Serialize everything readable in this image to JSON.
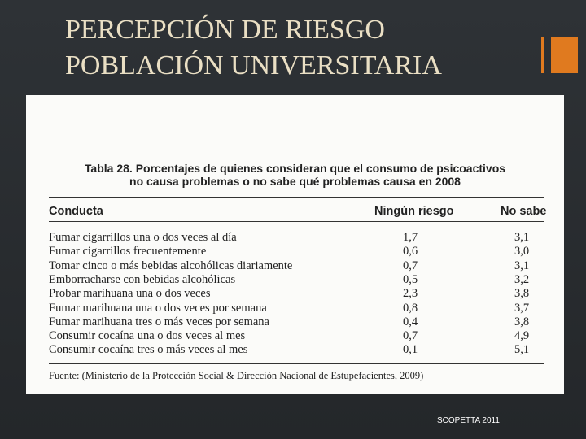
{
  "header": {
    "title": [
      "PERCEPCIÓN DE RIESGO",
      "POBLACIÓN UNIVERSITARIA"
    ]
  },
  "table": {
    "caption": [
      "Tabla 28. Porcentajes de quienes consideran que el consumo de psicoactivos",
      "no causa problemas o no sabe qué problemas causa en 2008"
    ],
    "columns": [
      "Conducta",
      "Ningún riesgo",
      "No sabe"
    ],
    "rows": [
      [
        "Fumar cigarrillos una o dos veces al día",
        "1,7",
        "3,1"
      ],
      [
        "Fumar cigarrillos frecuentemente",
        "0,6",
        "3,0"
      ],
      [
        "Tomar cinco o más bebidas alcohólicas diariamente",
        "0,7",
        "3,1"
      ],
      [
        "Emborracharse con bebidas alcohólicas",
        "0,5",
        "3,2"
      ],
      [
        "Probar marihuana una o dos veces",
        "2,3",
        "3,8"
      ],
      [
        "Fumar marihuana una o dos veces por semana",
        "0,8",
        "3,7"
      ],
      [
        "Fumar marihuana tres o más veces por semana",
        "0,4",
        "3,8"
      ],
      [
        "Consumir cocaína una o dos veces al mes",
        "0,7",
        "4,9"
      ],
      [
        "Consumir cocaína tres o más veces al mes",
        "0,1",
        "5,1"
      ]
    ],
    "source": "Fuente: (Ministerio de la Protección Social & Dirección Nacional de Estupefacientes, 2009)"
  },
  "footer": "SCOPETTA 2011"
}
